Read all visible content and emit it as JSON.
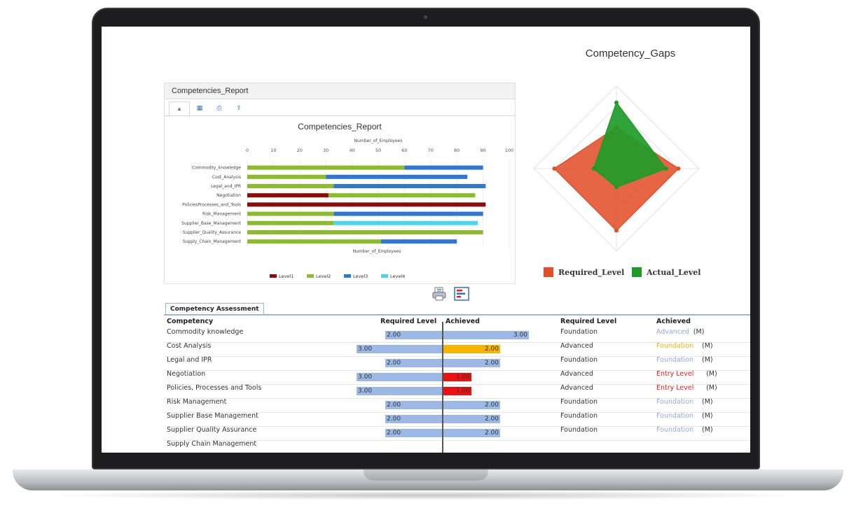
{
  "report_panel": {
    "header": "Competencies_Report",
    "tabs": [
      {
        "icon": "bar-chart-icon",
        "glyph": "▴"
      },
      {
        "icon": "table-icon",
        "glyph": "▦"
      },
      {
        "icon": "print-icon",
        "glyph": "⎙"
      },
      {
        "icon": "export-icon",
        "glyph": "⇪"
      }
    ]
  },
  "chart_data": [
    {
      "type": "bar",
      "orientation": "horizontal",
      "stacked": true,
      "title": "Competencies_Report",
      "xlabel": "Number_of_Employees",
      "xlabel_bottom": "Number_of_Employees",
      "xlim": [
        0,
        100
      ],
      "xticks": [
        "0",
        "10",
        "20",
        "30",
        "40",
        "50",
        "60",
        "70",
        "80",
        "90",
        "100"
      ],
      "categories": [
        "Commodity_knowledge",
        "Cost_Analysis",
        "Legal_and_IPR",
        "Negotiation",
        "PoliciesProcesses_and_Tools",
        "Risk_Management",
        "Supplier_Base_Management",
        "Supplier_Quality_Assurance",
        "Supply_Chain_Management"
      ],
      "series": [
        {
          "name": "Level1",
          "color": "#8b0c0c",
          "values": [
            0,
            0,
            0,
            31,
            91,
            0,
            0,
            0,
            0
          ]
        },
        {
          "name": "Level2",
          "color": "#8cbb2c",
          "values": [
            60,
            30,
            33,
            56,
            0,
            33,
            33,
            90,
            51
          ]
        },
        {
          "name": "Level3",
          "color": "#2f77d2",
          "values": [
            30,
            54,
            58,
            0,
            0,
            57,
            0,
            0,
            29
          ]
        },
        {
          "name": "Level4",
          "color": "#4fd4ee",
          "values": [
            0,
            0,
            0,
            0,
            0,
            0,
            55,
            0,
            0
          ]
        }
      ],
      "legend": "bottom"
    },
    {
      "type": "radar",
      "title": "Competency_Gaps",
      "series": [
        {
          "name": "Required_Level",
          "color": "#e2502a",
          "values": [
            2,
            3,
            3,
            3
          ]
        },
        {
          "name": "Actual_Level",
          "color": "#1f9b2a",
          "values": [
            3.2,
            2.4,
            0.9,
            1.1
          ]
        }
      ],
      "rmax": 4,
      "legend": "bottom"
    }
  ],
  "toolbar": {
    "print_icon": "printer-icon",
    "chart_icon": "chart-view-icon"
  },
  "assessment": {
    "tab_label": "Competency Assessment",
    "headers": {
      "competency": "Competency",
      "required_level": "Required Level",
      "achieved": "Achieved",
      "required_level_text": "Required Level",
      "achieved_text": "Achieved"
    },
    "colors": {
      "req": "#9bb8e6",
      "achieved_ok": "#9bb8e6",
      "achieved_low": "#f6b400",
      "achieved_entry": "#ee1010"
    },
    "rows": [
      {
        "competency": "Commodity knowledge",
        "req": "2.00",
        "req_val": 2,
        "ach": "3.00",
        "ach_val": 3,
        "ach_color": "#9bb8e6",
        "req_text": "Foundation",
        "ach_text": "Advanced",
        "ach_text_color": "#8fa9d8",
        "suffix": "(M)"
      },
      {
        "competency": "Cost Analysis",
        "req": "3.00",
        "req_val": 3,
        "ach": "2.00",
        "ach_val": 2,
        "ach_color": "#f6b400",
        "req_text": "Advanced",
        "ach_text": "Foundation",
        "ach_text_color": "#f0b000",
        "suffix": "(M)"
      },
      {
        "competency": "Legal and IPR",
        "req": "2.00",
        "req_val": 2,
        "ach": "2.00",
        "ach_val": 2,
        "ach_color": "#9bb8e6",
        "req_text": "Foundation",
        "ach_text": "Foundation",
        "ach_text_color": "#8fa9d8",
        "suffix": "(M)"
      },
      {
        "competency": "Negotiation",
        "req": "3.00",
        "req_val": 3,
        "ach": "1.00",
        "ach_val": 1,
        "ach_color": "#ee1010",
        "req_text": "Advanced",
        "ach_text": "Entry Level",
        "ach_text_color": "#e02020",
        "suffix": "(M)"
      },
      {
        "competency": "Policies, Processes and Tools",
        "req": "3.00",
        "req_val": 3,
        "ach": "1.00",
        "ach_val": 1,
        "ach_color": "#ee1010",
        "req_text": "Advanced",
        "ach_text": "Entry Level",
        "ach_text_color": "#e02020",
        "suffix": "(M)"
      },
      {
        "competency": "Risk Management",
        "req": "2.00",
        "req_val": 2,
        "ach": "2.00",
        "ach_val": 2,
        "ach_color": "#9bb8e6",
        "req_text": "Foundation",
        "ach_text": "Foundation",
        "ach_text_color": "#8fa9d8",
        "suffix": "(M)"
      },
      {
        "competency": "Supplier Base Management",
        "req": "2.00",
        "req_val": 2,
        "ach": "2.00",
        "ach_val": 2,
        "ach_color": "#9bb8e6",
        "req_text": "Foundation",
        "ach_text": "Foundation",
        "ach_text_color": "#8fa9d8",
        "suffix": "(M)"
      },
      {
        "competency": "Supplier Quality Assurance",
        "req": "2.00",
        "req_val": 2,
        "ach": "2.00",
        "ach_val": 2,
        "ach_color": "#9bb8e6",
        "req_text": "Foundation",
        "ach_text": "Foundation",
        "ach_text_color": "#8fa9d8",
        "suffix": "(M)"
      },
      {
        "competency": "Supply Chain Management",
        "req": "",
        "req_val": 0,
        "ach": "",
        "ach_val": 0,
        "ach_color": "#9bb8e6",
        "req_text": "",
        "ach_text": "",
        "ach_text_color": "#8fa9d8",
        "suffix": ""
      }
    ]
  }
}
